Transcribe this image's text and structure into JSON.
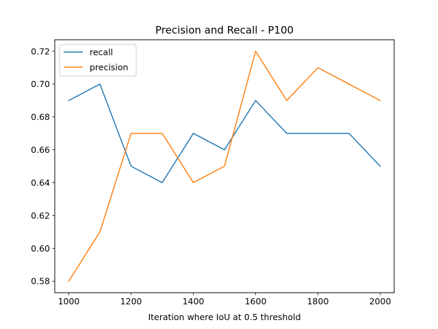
{
  "chart_data": {
    "type": "line",
    "title": "Precision and Recall - P100",
    "xlabel": "Iteration where IoU at 0.5 threshold",
    "ylabel": "",
    "x": [
      1000,
      1100,
      1200,
      1300,
      1400,
      1500,
      1600,
      1700,
      1800,
      1900,
      2000
    ],
    "xlim": [
      955,
      2045
    ],
    "ylim": [
      0.573,
      0.727
    ],
    "xticks": [
      1000,
      1200,
      1400,
      1600,
      1800,
      2000
    ],
    "yticks": [
      0.58,
      0.6,
      0.62,
      0.64,
      0.66,
      0.68,
      0.7,
      0.72
    ],
    "xtick_labels": [
      "1000",
      "1200",
      "1400",
      "1600",
      "1800",
      "2000"
    ],
    "ytick_labels": [
      "0.58",
      "0.60",
      "0.62",
      "0.64",
      "0.66",
      "0.68",
      "0.70",
      "0.72"
    ],
    "grid": false,
    "legend_position": "upper-left",
    "series": [
      {
        "name": "recall",
        "color": "#1f77b4",
        "values": [
          0.69,
          0.7,
          0.65,
          0.64,
          0.67,
          0.66,
          0.69,
          0.67,
          0.67,
          0.67,
          0.65
        ]
      },
      {
        "name": "precision",
        "color": "#ff7f0e",
        "values": [
          0.58,
          0.61,
          0.67,
          0.67,
          0.64,
          0.65,
          0.72,
          0.69,
          0.71,
          0.7,
          0.69
        ]
      }
    ]
  }
}
